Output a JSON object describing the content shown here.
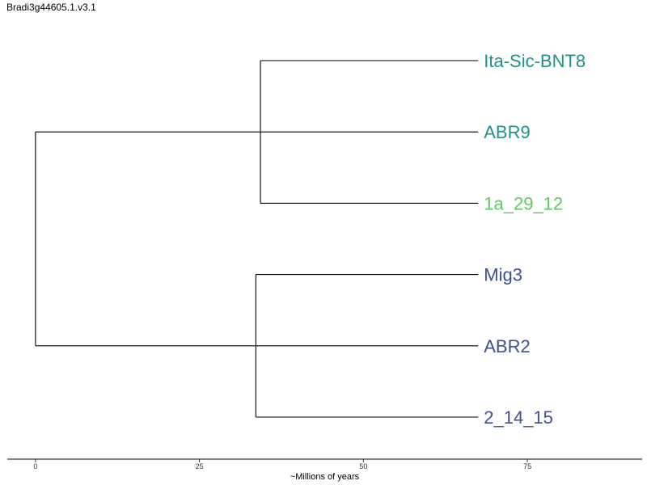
{
  "title": "Bradi3g44605.1.v3.1",
  "chart_data": {
    "type": "dendrogram",
    "xlabel": "~Millions of years",
    "xticks": [
      0,
      25,
      50,
      75
    ],
    "xlim": [
      -4.3,
      92.5
    ],
    "tips": [
      {
        "name": "Ita-Sic-BNT8",
        "color": "#21918c"
      },
      {
        "name": "ABR9",
        "color": "#21918c"
      },
      {
        "name": "1a_29_12",
        "color": "#5ec962"
      },
      {
        "name": "Mig3",
        "color": "#3b528b"
      },
      {
        "name": "ABR2",
        "color": "#3b528b"
      },
      {
        "name": "2_14_15",
        "color": "#3b528b"
      }
    ],
    "tip_x": 67.5,
    "root_x": 0,
    "clades": [
      {
        "members": [
          0,
          1,
          2
        ],
        "node_x": 34.3
      },
      {
        "members": [
          3,
          4,
          5
        ],
        "node_x": 33.6
      }
    ],
    "line_color": "#000000"
  }
}
